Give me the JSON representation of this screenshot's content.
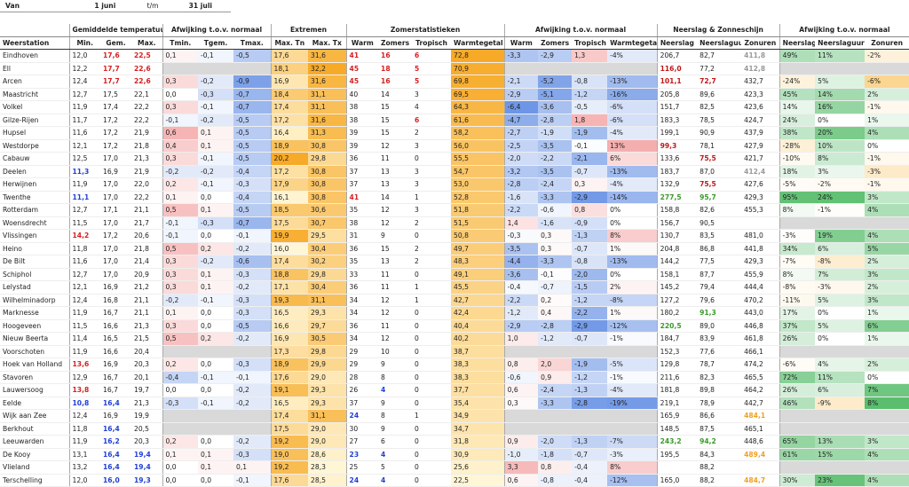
{
  "header": {
    "label": "Van",
    "from": "1 juni",
    "sep": "t/m",
    "to": "31 juli"
  },
  "table": {
    "station_header": "Weerstation",
    "groups": [
      {
        "title": "Gemiddelde temperatuur",
        "columns": [
          "Min.",
          "Gem.",
          "Max."
        ]
      },
      {
        "title": "Afwijking t.o.v. normaal",
        "columns": [
          "Tmin.",
          "Tgem.",
          "Tmax."
        ]
      },
      {
        "title": "Extremen",
        "columns": [
          "Max. Tn",
          "Max. Tx"
        ]
      },
      {
        "title": "Zomerstatistieken",
        "columns": [
          "Warm",
          "Zomers",
          "Tropisch",
          "Warmtegetal"
        ]
      },
      {
        "title": "Afwijking t.o.v. normaal",
        "columns": [
          "Warm",
          "Zomers",
          "Tropisch",
          "Warmtegetal"
        ]
      },
      {
        "title": "Neerslag & Zonneschijn",
        "columns": [
          "Neerslag",
          "Neerslaguur",
          "Zonuren"
        ]
      },
      {
        "title": "Afwijking t.o.v. normaal",
        "columns": [
          "Neerslag",
          "Neerslaguur",
          "Zonuren"
        ]
      }
    ],
    "rows": [
      [
        "Eindhoven",
        "12,0",
        "17,6",
        "22,5",
        "0,1",
        "-0,1",
        "-0,5",
        "17,6",
        "31,6",
        "41",
        "16",
        "6",
        "72,8",
        "-3,3",
        "-2,9",
        "1,3",
        "-4%",
        "206,7",
        "82,7",
        "411,8",
        "49%",
        "11%",
        "-2%"
      ],
      [
        "Ell",
        "12,2",
        "17,7",
        "22,6",
        null,
        null,
        null,
        "18,1",
        "32,2",
        "45",
        "18",
        "5",
        "70,9",
        null,
        null,
        null,
        null,
        "116,0",
        "77,2",
        "412,8",
        null,
        null,
        null
      ],
      [
        "Arcen",
        "12,4",
        "17,7",
        "22,6",
        "0,3",
        "-0,2",
        "-0,9",
        "16,9",
        "31,6",
        "45",
        "16",
        "5",
        "69,8",
        "-2,1",
        "-5,2",
        "-0,8",
        "-13%",
        "101,1",
        "72,7",
        "432,7",
        "-24%",
        "5%",
        "-6%"
      ],
      [
        "Maastricht",
        "12,7",
        "17,5",
        "22,1",
        "0,0",
        "-0,3",
        "-0,7",
        "18,4",
        "31,1",
        "40",
        "14",
        "3",
        "69,5",
        "-2,9",
        "-5,1",
        "-1,2",
        "-16%",
        "205,8",
        "89,6",
        "423,3",
        "45%",
        "14%",
        "2%"
      ],
      [
        "Volkel",
        "11,9",
        "17,4",
        "22,2",
        "0,3",
        "-0,1",
        "-0,7",
        "17,4",
        "31,1",
        "38",
        "15",
        "4",
        "64,3",
        "-6,4",
        "-3,6",
        "-0,5",
        "-6%",
        "151,7",
        "82,5",
        "423,6",
        "14%",
        "16%",
        "-1%"
      ],
      [
        "Gilze-Rijen",
        "11,7",
        "17,2",
        "22,2",
        "-0,1",
        "-0,2",
        "-0,5",
        "17,2",
        "31,6",
        "38",
        "15",
        "6",
        "61,6",
        "-4,7",
        "-2,8",
        "1,8",
        "-6%",
        "183,3",
        "78,5",
        "424,7",
        "24%",
        "0%",
        "1%"
      ],
      [
        "Hupsel",
        "11,6",
        "17,2",
        "21,9",
        "0,6",
        "0,1",
        "-0,5",
        "16,4",
        "31,3",
        "39",
        "15",
        "2",
        "58,2",
        "-2,7",
        "-1,9",
        "-1,9",
        "-4%",
        "199,1",
        "90,9",
        "437,9",
        "38%",
        "20%",
        "4%"
      ],
      [
        "Westdorpe",
        "12,1",
        "17,2",
        "21,8",
        "0,4",
        "0,1",
        "-0,5",
        "18,9",
        "30,8",
        "39",
        "12",
        "3",
        "56,0",
        "-2,5",
        "-3,5",
        "-0,1",
        "13%",
        "99,3",
        "78,1",
        "427,9",
        "-28%",
        "10%",
        "0%"
      ],
      [
        "Cabauw",
        "12,5",
        "17,0",
        "21,3",
        "0,3",
        "-0,1",
        "-0,5",
        "20,2",
        "29,8",
        "36",
        "11",
        "0",
        "55,5",
        "-2,0",
        "-2,2",
        "-2,1",
        "6%",
        "133,6",
        "75,5",
        "421,7",
        "-10%",
        "8%",
        "-1%"
      ],
      [
        "Deelen",
        "11,3",
        "16,9",
        "21,9",
        "-0,2",
        "-0,2",
        "-0,4",
        "17,2",
        "30,8",
        "37",
        "13",
        "3",
        "54,7",
        "-3,2",
        "-3,5",
        "-0,7",
        "-13%",
        "183,7",
        "87,0",
        "412,4",
        "18%",
        "3%",
        "-3%"
      ],
      [
        "Herwijnen",
        "11,9",
        "17,0",
        "22,0",
        "0,2",
        "-0,1",
        "-0,3",
        "17,9",
        "30,8",
        "37",
        "13",
        "3",
        "53,0",
        "-2,8",
        "-2,4",
        "0,3",
        "-4%",
        "132,9",
        "75,5",
        "427,6",
        "-5%",
        "-2%",
        "-1%"
      ],
      [
        "Twenthe",
        "11,1",
        "17,0",
        "22,2",
        "0,1",
        "0,0",
        "-0,4",
        "16,1",
        "30,8",
        "41",
        "14",
        "1",
        "52,8",
        "-1,6",
        "-3,3",
        "-2,9",
        "-14%",
        "277,5",
        "95,7",
        "429,3",
        "95%",
        "24%",
        "3%"
      ],
      [
        "Rotterdam",
        "12,7",
        "17,1",
        "21,1",
        "0,5",
        "0,1",
        "-0,5",
        "18,5",
        "30,6",
        "35",
        "12",
        "3",
        "51,8",
        "-2,2",
        "-0,6",
        "0,8",
        "0%",
        "158,8",
        "82,6",
        "455,3",
        "8%",
        "-1%",
        "4%"
      ],
      [
        "Woensdrecht",
        "11,5",
        "17,0",
        "21,7",
        "-0,1",
        "-0,3",
        "-0,7",
        "17,5",
        "30,7",
        "38",
        "12",
        "2",
        "51,5",
        "1,4",
        "-1,6",
        "-0,9",
        "0%",
        "156,7",
        "90,5",
        null,
        null,
        null,
        null
      ],
      [
        "Vlissingen",
        "14,2",
        "17,2",
        "20,6",
        "-0,1",
        "0,0",
        "-0,1",
        "19,9",
        "29,5",
        "31",
        "9",
        "0",
        "50,8",
        "-0,3",
        "0,3",
        "-1,3",
        "8%",
        "130,7",
        "83,5",
        "481,0",
        "-3%",
        "19%",
        "4%"
      ],
      [
        "Heino",
        "11,8",
        "17,0",
        "21,8",
        "0,5",
        "0,2",
        "-0,2",
        "16,0",
        "30,4",
        "36",
        "15",
        "2",
        "49,7",
        "-3,5",
        "0,3",
        "-0,7",
        "1%",
        "204,8",
        "86,8",
        "441,8",
        "34%",
        "6%",
        "5%"
      ],
      [
        "De Bilt",
        "11,6",
        "17,0",
        "21,4",
        "0,3",
        "-0,2",
        "-0,6",
        "17,4",
        "30,2",
        "35",
        "13",
        "2",
        "48,3",
        "-4,4",
        "-3,3",
        "-0,8",
        "-13%",
        "144,2",
        "77,5",
        "429,3",
        "-7%",
        "-8%",
        "2%"
      ],
      [
        "Schiphol",
        "12,7",
        "17,0",
        "20,9",
        "0,3",
        "0,1",
        "-0,3",
        "18,8",
        "29,8",
        "33",
        "11",
        "0",
        "49,1",
        "-3,6",
        "-0,1",
        "-2,0",
        "0%",
        "158,1",
        "87,7",
        "455,9",
        "8%",
        "7%",
        "3%"
      ],
      [
        "Lelystad",
        "12,1",
        "16,9",
        "21,2",
        "0,3",
        "0,1",
        "-0,2",
        "17,1",
        "30,4",
        "36",
        "11",
        "1",
        "45,5",
        "-0,4",
        "-0,7",
        "-1,5",
        "2%",
        "145,2",
        "79,4",
        "444,4",
        "-8%",
        "-3%",
        "2%"
      ],
      [
        "Wilhelminadorp",
        "12,4",
        "16,8",
        "21,1",
        "-0,2",
        "-0,1",
        "-0,3",
        "19,3",
        "31,1",
        "34",
        "12",
        "1",
        "42,7",
        "-2,2",
        "0,2",
        "-1,2",
        "-8%",
        "127,2",
        "79,6",
        "470,2",
        "-11%",
        "5%",
        "3%"
      ],
      [
        "Marknesse",
        "11,9",
        "16,7",
        "21,1",
        "0,1",
        "0,0",
        "-0,3",
        "16,5",
        "29,3",
        "34",
        "12",
        "0",
        "42,4",
        "-1,2",
        "0,4",
        "-2,2",
        "1%",
        "180,2",
        "91,3",
        "443,0",
        "17%",
        "0%",
        "1%"
      ],
      [
        "Hoogeveen",
        "11,5",
        "16,6",
        "21,3",
        "0,3",
        "0,0",
        "-0,5",
        "16,6",
        "29,7",
        "36",
        "11",
        "0",
        "40,4",
        "-2,9",
        "-2,8",
        "-2,9",
        "-12%",
        "220,5",
        "89,0",
        "446,8",
        "37%",
        "5%",
        "6%"
      ],
      [
        "Nieuw Beerta",
        "11,4",
        "16,5",
        "21,5",
        "0,5",
        "0,2",
        "-0,2",
        "16,9",
        "30,5",
        "34",
        "12",
        "0",
        "40,2",
        "1,0",
        "-1,2",
        "-0,7",
        "-1%",
        "184,7",
        "83,9",
        "461,8",
        "26%",
        "0%",
        "1%"
      ],
      [
        "Voorschoten",
        "11,9",
        "16,6",
        "20,4",
        null,
        null,
        null,
        "17,3",
        "29,8",
        "29",
        "10",
        "0",
        "38,7",
        null,
        null,
        null,
        null,
        "152,3",
        "77,6",
        "466,1",
        null,
        null,
        null
      ],
      [
        "Hoek van Holland",
        "13,6",
        "16,9",
        "20,3",
        "0,2",
        "0,0",
        "-0,3",
        "18,9",
        "29,9",
        "29",
        "9",
        "0",
        "38,3",
        "0,8",
        "2,0",
        "-1,9",
        "-5%",
        "129,8",
        "78,7",
        "474,2",
        "-6%",
        "4%",
        "2%"
      ],
      [
        "Stavoren",
        "12,9",
        "16,7",
        "20,1",
        "-0,4",
        "-0,1",
        "-0,1",
        "17,6",
        "29,0",
        "28",
        "8",
        "0",
        "38,3",
        "-0,6",
        "0,9",
        "-1,2",
        "-1%",
        "211,6",
        "82,3",
        "465,5",
        "72%",
        "11%",
        "0%"
      ],
      [
        "Lauwersoog",
        "13,8",
        "16,7",
        "19,7",
        "0,0",
        "0,0",
        "-0,2",
        "19,1",
        "29,3",
        "26",
        "4",
        "0",
        "37,7",
        "0,6",
        "-2,4",
        "-1,3",
        "-4%",
        "181,8",
        "89,8",
        "464,2",
        "26%",
        "6%",
        "7%"
      ],
      [
        "Eelde",
        "10,8",
        "16,4",
        "21,3",
        "-0,3",
        "-0,1",
        "-0,2",
        "16,5",
        "29,3",
        "37",
        "9",
        "0",
        "35,4",
        "0,3",
        "-3,3",
        "-2,8",
        "-19%",
        "219,1",
        "78,9",
        "442,7",
        "46%",
        "-9%",
        "8%"
      ],
      [
        "Wijk aan Zee",
        "12,4",
        "16,9",
        "19,9",
        null,
        null,
        null,
        "17,4",
        "31,1",
        "24",
        "8",
        "1",
        "34,9",
        null,
        null,
        null,
        null,
        "165,9",
        "86,6",
        "484,1",
        null,
        null,
        null
      ],
      [
        "Berkhout",
        "11,8",
        "16,4",
        "20,5",
        null,
        null,
        null,
        "17,5",
        "29,0",
        "30",
        "9",
        "0",
        "34,7",
        null,
        null,
        null,
        null,
        "148,5",
        "87,5",
        "465,1",
        null,
        null,
        null
      ],
      [
        "Leeuwarden",
        "11,9",
        "16,2",
        "20,3",
        "0,2",
        "0,0",
        "-0,2",
        "19,2",
        "29,0",
        "27",
        "6",
        "0",
        "31,8",
        "0,9",
        "-2,0",
        "-1,3",
        "-7%",
        "243,2",
        "94,2",
        "448,6",
        "65%",
        "13%",
        "3%"
      ],
      [
        "De Kooy",
        "13,1",
        "16,4",
        "19,4",
        "0,1",
        "0,1",
        "-0,3",
        "19,0",
        "28,6",
        "23",
        "4",
        "0",
        "30,9",
        "-1,0",
        "-1,8",
        "-0,7",
        "-3%",
        "195,5",
        "84,3",
        "489,4",
        "61%",
        "15%",
        "4%"
      ],
      [
        "Vlieland",
        "13,2",
        "16,4",
        "19,4",
        "0,0",
        "0,1",
        "0,1",
        "19,2",
        "28,3",
        "25",
        "5",
        "0",
        "25,6",
        "3,3",
        "0,8",
        "-0,4",
        "8%",
        null,
        "88,2",
        null,
        null,
        null,
        null
      ],
      [
        "Terschelling",
        "12,0",
        "16,0",
        "19,3",
        "0,0",
        "0,0",
        "-0,1",
        "17,6",
        "28,5",
        "24",
        "4",
        "0",
        "22,5",
        "0,6",
        "-0,8",
        "-0,4",
        "-12%",
        "165,0",
        "88,2",
        "484,7",
        "30%",
        "23%",
        "4%"
      ]
    ]
  }
}
